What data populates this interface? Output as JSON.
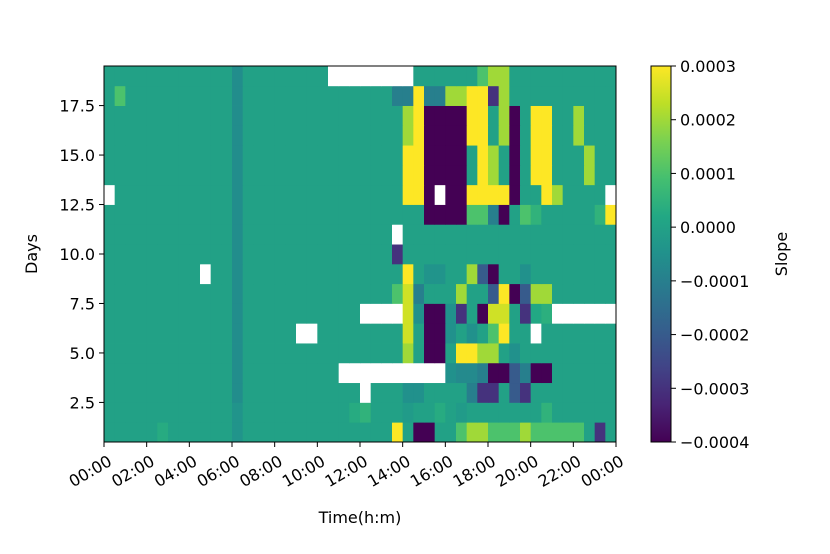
{
  "chart_data": {
    "type": "heatmap",
    "title": "",
    "xlabel": "Time(h:m)",
    "ylabel": "Days",
    "colorbar_label": "Slope",
    "colormap": "viridis",
    "x_tick_labels": [
      "00:00",
      "02:00",
      "04:00",
      "06:00",
      "08:00",
      "10:00",
      "12:00",
      "14:00",
      "16:00",
      "18:00",
      "20:00",
      "22:00",
      "00:00"
    ],
    "y_tick_labels": [
      "2.5",
      "5.0",
      "7.5",
      "10.0",
      "12.5",
      "15.0",
      "17.5"
    ],
    "y_ticks": [
      2.5,
      5.0,
      7.5,
      10.0,
      12.5,
      15.0,
      17.5
    ],
    "colorbar_tick_labels": [
      "0.0003",
      "0.0002",
      "0.0001",
      "0.0000",
      "−0.0001",
      "−0.0002",
      "−0.0003",
      "−0.0004"
    ],
    "colorbar_ticks": [
      0.0003,
      0.0002,
      0.0001,
      0.0,
      -0.0001,
      -0.0002,
      -0.0003,
      -0.0004
    ],
    "vmin": -0.0004,
    "vmax": 0.0003,
    "xlim_hours": [
      0,
      24
    ],
    "ylim": [
      0.5,
      19.5
    ],
    "n_time_bins": 48,
    "missing_value_color": "#ffffff",
    "days": [
      1,
      2,
      3,
      4,
      5,
      6,
      7,
      8,
      9,
      10,
      11,
      12,
      13,
      14,
      15,
      16,
      17,
      18,
      19
    ],
    "z_units": "slope x 1e-4 (null = missing)",
    "z": [
      [
        0,
        0,
        0,
        0,
        0,
        0.3,
        0,
        0,
        0,
        0,
        0,
        0,
        -0.4,
        0,
        0,
        0,
        0,
        0,
        0,
        0,
        0,
        0,
        0,
        0,
        0,
        0,
        0,
        3,
        0,
        -4,
        -4,
        0,
        0,
        1,
        2,
        2,
        1,
        1,
        1,
        2,
        1,
        1,
        1,
        1,
        1,
        0,
        -3,
        0
      ],
      [
        0,
        0,
        0,
        0,
        0,
        0,
        0,
        0,
        0,
        0,
        0,
        0,
        -0.4,
        0,
        0,
        0,
        0,
        0,
        0,
        0,
        0,
        0,
        0,
        0.3,
        0.5,
        0,
        0,
        0,
        -0.2,
        0,
        0,
        0.3,
        0,
        -0.2,
        0,
        0,
        0,
        0,
        0,
        0,
        0,
        0.5,
        0,
        0,
        0,
        0,
        0,
        0
      ],
      [
        0,
        0,
        0,
        0,
        0,
        0,
        0,
        0,
        0,
        0,
        0,
        0,
        -0.6,
        0,
        0,
        0,
        0,
        0,
        0,
        0,
        0,
        0,
        0,
        0,
        null,
        0,
        0,
        0,
        -0.5,
        -0.5,
        0,
        0,
        0,
        0,
        -1,
        -3,
        -3,
        0,
        -2,
        -3,
        0,
        0,
        0,
        0,
        0,
        0,
        0,
        0
      ],
      [
        0,
        0,
        0,
        0,
        0,
        0,
        0,
        0,
        0,
        0,
        0,
        0,
        -0.6,
        0,
        0,
        0,
        0,
        0,
        0,
        0,
        0,
        0,
        null,
        null,
        null,
        null,
        null,
        null,
        null,
        null,
        null,
        null,
        -0.5,
        -0.7,
        -0.7,
        -1,
        -4,
        -4,
        -2,
        -1,
        -4,
        -4,
        0,
        0,
        0,
        0,
        0,
        0
      ],
      [
        0,
        0,
        0,
        0,
        0,
        0,
        0,
        0,
        0,
        0,
        0,
        0,
        -0.6,
        0,
        0,
        0,
        0,
        0,
        0,
        0,
        0,
        0,
        0,
        0,
        0,
        0,
        0,
        0,
        2,
        0,
        -4,
        -4,
        0,
        3,
        3,
        2,
        2,
        0,
        -0.5,
        0,
        0,
        0,
        0,
        0,
        0,
        0,
        0,
        0
      ],
      [
        0,
        0,
        0,
        0,
        0,
        0,
        0,
        0,
        0,
        0,
        0,
        0,
        -0.6,
        0,
        0,
        0,
        0,
        0,
        null,
        null,
        0,
        0,
        0,
        0,
        0,
        0,
        0,
        0,
        2.5,
        0,
        -4,
        -4,
        -0.5,
        0,
        -0.5,
        0,
        1,
        3,
        0,
        0,
        null,
        0,
        0,
        0,
        0,
        0,
        0,
        0
      ],
      [
        0,
        0,
        0,
        0,
        0,
        0,
        0,
        0,
        0,
        0,
        0,
        0,
        -0.6,
        0,
        0,
        0,
        0,
        0,
        0,
        0,
        0,
        0,
        0,
        0,
        null,
        null,
        null,
        null,
        2.5,
        -0.5,
        -4,
        -4,
        -0.5,
        -3,
        0,
        -4,
        2.5,
        2.5,
        0,
        -3,
        0.2,
        0.4,
        null,
        null,
        null,
        null,
        null,
        null
      ],
      [
        0,
        0,
        0,
        0,
        0,
        0,
        0,
        0,
        0,
        0,
        0,
        0,
        -0.6,
        0,
        0,
        0,
        0,
        0,
        0,
        0,
        0,
        0,
        0,
        0,
        0,
        0,
        0,
        1,
        2.5,
        -1,
        0,
        0,
        0,
        2,
        0,
        0,
        -2,
        3,
        -4,
        -2,
        2,
        2,
        0,
        0,
        0,
        0,
        0,
        0
      ],
      [
        0,
        0,
        0,
        0,
        0,
        0,
        0,
        0,
        0,
        null,
        0,
        0,
        -0.6,
        0,
        0,
        0,
        0,
        0,
        0,
        0,
        0,
        0,
        0,
        0,
        0,
        0,
        0,
        0,
        3,
        0,
        -0.4,
        -0.4,
        0,
        0,
        2,
        -2,
        -4,
        0,
        0,
        -0.5,
        0,
        0,
        0,
        0,
        0,
        0,
        0,
        0
      ],
      [
        0,
        0,
        0,
        0,
        0,
        0,
        0,
        0,
        0,
        0,
        0,
        0,
        -0.6,
        0,
        0,
        0,
        0,
        0,
        0,
        0,
        0,
        0,
        0,
        0,
        0,
        0,
        0,
        -3,
        0,
        0,
        0,
        0,
        0,
        0,
        0,
        0,
        0,
        0,
        0,
        0,
        0,
        0,
        0,
        0,
        0,
        0,
        0,
        0
      ],
      [
        0,
        0,
        0,
        0,
        0,
        0,
        0,
        0,
        0,
        0,
        0,
        0,
        -0.6,
        0,
        0,
        0,
        0,
        0,
        0,
        0,
        0,
        0,
        0,
        0,
        0,
        0,
        0,
        null,
        0,
        0,
        0,
        0,
        0,
        0,
        0,
        0,
        0,
        0,
        0,
        0,
        0,
        0,
        0,
        0,
        0,
        0,
        0,
        0
      ],
      [
        0,
        0,
        0,
        0,
        0,
        0,
        0,
        0,
        0,
        0,
        0,
        0,
        -0.6,
        0,
        0,
        0,
        0,
        0,
        0,
        0,
        0,
        0,
        0,
        0,
        0,
        0,
        0,
        0,
        0,
        0,
        -4,
        -4,
        -4,
        -4,
        1,
        1,
        -1,
        -4,
        0,
        1,
        0.5,
        0,
        0,
        0,
        0,
        0,
        0.5,
        3
      ],
      [
        null,
        0,
        0,
        0,
        0,
        0,
        0,
        0,
        0,
        0,
        0,
        0,
        -0.6,
        0,
        0,
        0,
        0,
        0,
        0,
        0,
        0,
        0,
        0,
        0,
        0,
        0,
        0,
        0,
        3,
        3,
        -4,
        null,
        -4,
        -4,
        3,
        3,
        3,
        3,
        -4,
        0,
        0,
        3,
        2,
        0,
        0,
        0,
        0,
        null
      ],
      [
        0,
        0,
        0,
        0,
        0,
        0,
        0,
        0,
        0,
        0,
        0,
        0,
        -0.6,
        0,
        0,
        0,
        0,
        0,
        0,
        0,
        0,
        0,
        0,
        0,
        0,
        0,
        0,
        0,
        3,
        3,
        -4,
        -4,
        -4,
        -4,
        0,
        3,
        2,
        0,
        -4,
        0,
        3,
        3,
        0,
        0,
        0,
        2,
        0,
        0
      ],
      [
        0,
        0,
        0,
        0,
        0,
        0,
        0,
        0,
        0,
        0,
        0,
        0,
        -0.6,
        0,
        0,
        0,
        0,
        0,
        0,
        0,
        0,
        0,
        0,
        0,
        0,
        0,
        0,
        0,
        3,
        3,
        -4,
        -4,
        -4,
        -4,
        0,
        3,
        2,
        0,
        -4,
        0,
        3,
        3,
        0,
        0,
        0,
        2,
        0,
        0
      ],
      [
        0,
        0,
        0,
        0,
        0,
        0,
        0,
        0,
        0,
        0,
        0,
        0,
        -0.6,
        0,
        0,
        0,
        0,
        0,
        0,
        0,
        0,
        0,
        0,
        0,
        0,
        0,
        0,
        0,
        2,
        3,
        -4,
        -4,
        -4,
        -4,
        3,
        3,
        0,
        2,
        -4,
        0,
        3,
        3,
        0,
        0,
        2,
        0,
        0,
        0
      ],
      [
        0,
        0,
        0,
        0,
        0,
        0,
        0,
        0,
        0,
        0,
        0,
        0,
        -0.6,
        0,
        0,
        0,
        0,
        0,
        0,
        0,
        0,
        0,
        0,
        0,
        0,
        0,
        0,
        0,
        2,
        3,
        -4,
        -4,
        -4,
        -4,
        3,
        3,
        0,
        2,
        -4,
        0,
        3,
        3,
        0,
        0,
        2,
        0,
        0,
        0
      ],
      [
        0,
        1,
        0,
        0,
        0,
        0,
        0,
        0,
        0,
        0,
        0,
        0,
        -0.6,
        0,
        0,
        0,
        0,
        0,
        0,
        0,
        0,
        0,
        0,
        0,
        0,
        0,
        0,
        -1,
        -1,
        3,
        -1,
        -1,
        2,
        2,
        3,
        3,
        -3,
        2,
        0,
        0,
        0,
        0,
        0,
        0,
        0,
        0,
        0,
        0
      ],
      [
        0,
        0,
        0,
        0,
        0,
        0,
        0,
        0,
        0,
        0,
        0,
        0,
        -0.6,
        0,
        0,
        0,
        0,
        0,
        0,
        0,
        0,
        null,
        null,
        null,
        null,
        null,
        null,
        null,
        null,
        0,
        0,
        0,
        0,
        0,
        0,
        1,
        2,
        2,
        0,
        0,
        0,
        0,
        0,
        0,
        0,
        0,
        0,
        0
      ]
    ]
  }
}
